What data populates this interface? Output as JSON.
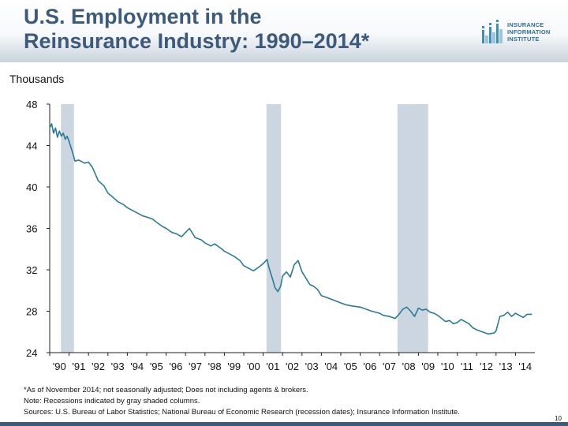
{
  "header": {
    "title_line1": "U.S. Employment in the",
    "title_line2": "Reinsurance Industry: 1990–2014*"
  },
  "logo": {
    "line1": "INSURANCE",
    "line2": "INFORMATION",
    "line3": "INSTITUTE",
    "icon": "iii-logo-icon"
  },
  "colors": {
    "title": "#3d5a7a",
    "series": "#2a7a98",
    "recession": "#cbd6e0",
    "footer_bar": "#3d5a7a"
  },
  "chart_data": {
    "type": "line",
    "ylabel": "Thousands",
    "ylim": [
      24,
      48
    ],
    "yticks": [
      48,
      44,
      40,
      36,
      32,
      28,
      24
    ],
    "ytick_labels": [
      "48",
      "44",
      "40",
      "36",
      "32",
      "28",
      "24"
    ],
    "xlim": [
      1990.0,
      2015.0
    ],
    "xtick_labels": [
      "'90",
      "'91",
      "'92",
      "'93",
      "'94",
      "'95",
      "'96",
      "'97",
      "'98",
      "'99",
      "'00",
      "'01",
      "'02",
      "'03",
      "'04",
      "'05",
      "'06",
      "'07",
      "'08",
      "'09",
      "'10",
      "'11",
      "'12",
      "'13",
      "'14"
    ],
    "recessions": [
      [
        1990.58,
        1991.25
      ],
      [
        2001.17,
        2001.92
      ],
      [
        2007.92,
        2009.5
      ]
    ],
    "grid": false,
    "legend": "none",
    "series": [
      {
        "x": [
          1990.0,
          1990.1,
          1990.2,
          1990.3,
          1990.4,
          1990.5,
          1990.6,
          1990.7,
          1990.8,
          1990.9,
          1991.0,
          1991.2,
          1991.3,
          1991.5,
          1991.8,
          1992.0,
          1992.2,
          1992.5,
          1992.8,
          1993.0,
          1993.2,
          1993.5,
          1993.8,
          1994.0,
          1994.3,
          1994.5,
          1994.8,
          1995.0,
          1995.3,
          1995.5,
          1995.8,
          1996.0,
          1996.3,
          1996.5,
          1996.8,
          1997.0,
          1997.2,
          1997.5,
          1997.8,
          1998.0,
          1998.3,
          1998.5,
          1998.8,
          1999.0,
          1999.3,
          1999.5,
          1999.8,
          2000.0,
          2000.3,
          2000.5,
          2000.8,
          2001.0,
          2001.2,
          2001.3,
          2001.5,
          2001.6,
          2001.75,
          2001.9,
          2002.0,
          2002.2,
          2002.4,
          2002.6,
          2002.8,
          2003.0,
          2003.2,
          2003.4,
          2003.6,
          2003.8,
          2004.0,
          2004.3,
          2004.6,
          2005.0,
          2005.3,
          2005.6,
          2006.0,
          2006.3,
          2006.6,
          2007.0,
          2007.2,
          2007.5,
          2007.8,
          2008.0,
          2008.2,
          2008.4,
          2008.6,
          2008.8,
          2009.0,
          2009.2,
          2009.4,
          2009.6,
          2009.8,
          2010.0,
          2010.2,
          2010.4,
          2010.6,
          2010.8,
          2011.0,
          2011.2,
          2011.4,
          2011.6,
          2011.8,
          2012.0,
          2012.3,
          2012.6,
          2012.9,
          2013.0,
          2013.2,
          2013.4,
          2013.6,
          2013.8,
          2014.0,
          2014.2,
          2014.4,
          2014.6,
          2014.85
        ],
        "y": [
          45.7,
          46.1,
          45.2,
          45.7,
          44.8,
          45.4,
          44.9,
          45.2,
          44.6,
          44.9,
          44.4,
          43.2,
          42.5,
          42.6,
          42.3,
          42.4,
          41.9,
          40.6,
          40.1,
          39.4,
          39.1,
          38.6,
          38.3,
          38.0,
          37.7,
          37.5,
          37.2,
          37.1,
          36.9,
          36.6,
          36.2,
          36.0,
          35.6,
          35.5,
          35.2,
          35.6,
          36.0,
          35.1,
          34.9,
          34.6,
          34.3,
          34.5,
          34.1,
          33.8,
          33.5,
          33.3,
          32.9,
          32.4,
          32.1,
          31.9,
          32.3,
          32.6,
          33.0,
          32.2,
          31.0,
          30.3,
          29.9,
          30.4,
          31.4,
          31.8,
          31.3,
          32.5,
          32.9,
          31.8,
          31.2,
          30.6,
          30.4,
          30.1,
          29.5,
          29.3,
          29.1,
          28.8,
          28.6,
          28.5,
          28.4,
          28.2,
          28.0,
          27.8,
          27.6,
          27.5,
          27.3,
          27.7,
          28.2,
          28.4,
          28.0,
          27.5,
          28.3,
          28.1,
          28.2,
          27.9,
          27.8,
          27.6,
          27.3,
          27.0,
          27.1,
          26.8,
          26.9,
          27.2,
          27.0,
          26.8,
          26.4,
          26.2,
          26.0,
          25.8,
          25.9,
          26.1,
          27.5,
          27.6,
          27.9,
          27.5,
          27.8,
          27.6,
          27.4,
          27.7,
          27.7
        ]
      }
    ]
  },
  "footnotes": {
    "line1": "*As of November 2014; not seasonally adjusted; Does not including agents & brokers.",
    "line2": "Note: Recessions indicated by gray shaded columns.",
    "line3": "Sources: U.S. Bureau of Labor Statistics;  National Bureau of Economic Research (recession dates); Insurance Information Institute."
  },
  "page_number": "10"
}
